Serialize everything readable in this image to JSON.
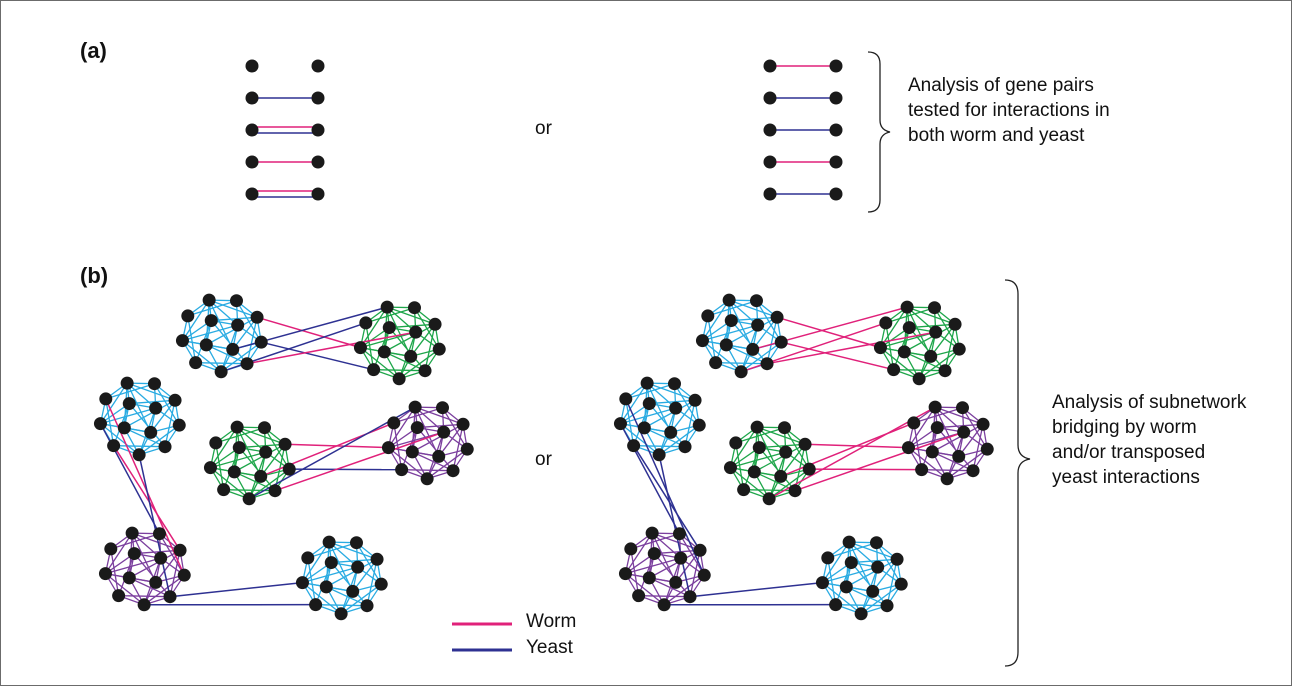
{
  "panel_a": {
    "label": "(a)",
    "or_text": "or",
    "description": "Analysis of gene pairs tested for interactions in both worm and yeast"
  },
  "panel_b": {
    "label": "(b)",
    "or_text": "or",
    "description": "Analysis of subnetwork bridging by worm and/or transposed yeast interactions"
  },
  "legend": {
    "items": [
      {
        "label": "Worm",
        "color": "#e0217a"
      },
      {
        "label": "Yeast",
        "color": "#2e3192"
      }
    ]
  },
  "colors": {
    "node": "#1a1a1a",
    "worm": "#e0217a",
    "yeast": "#2e3192",
    "cyan_module": "#29abe2",
    "green_module": "#1ea64a",
    "purple_module": "#7b3f9e"
  }
}
